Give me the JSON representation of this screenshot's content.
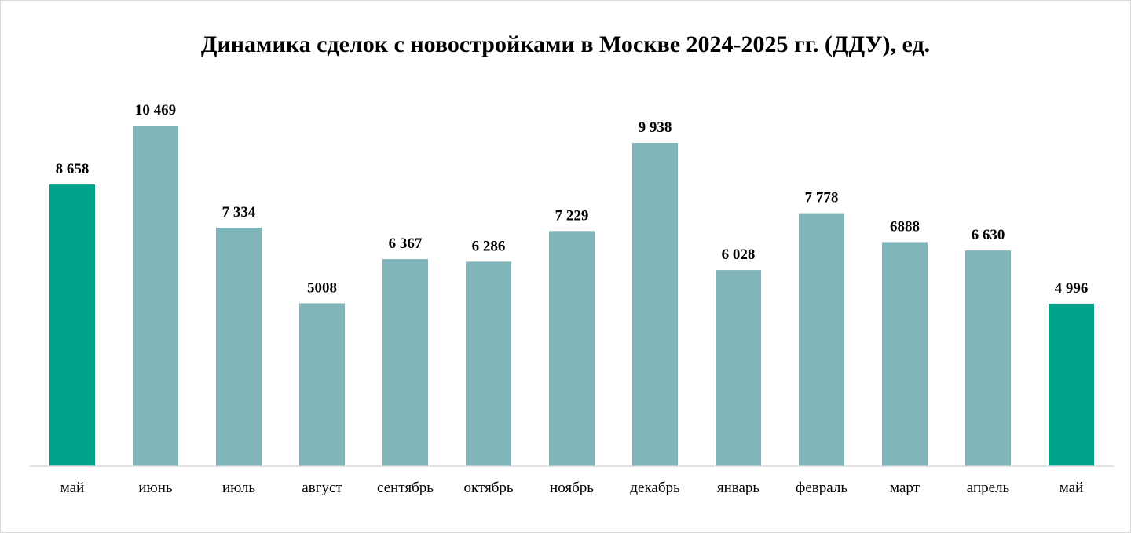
{
  "chart_data": {
    "type": "bar",
    "title": "Динамика сделок с новостройками в Москве 2024-2025 гг. (ДДУ), ед.",
    "xlabel": "",
    "ylabel": "",
    "ylim": [
      0,
      12000
    ],
    "grid": false,
    "legend": "none",
    "categories": [
      "май",
      "июнь",
      "июль",
      "август",
      "сентябрь",
      "октябрь",
      "ноябрь",
      "декабрь",
      "январь",
      "февраль",
      "март",
      "апрель",
      "май"
    ],
    "values": [
      8658,
      10469,
      7334,
      5008,
      6367,
      6286,
      7229,
      9938,
      6028,
      7778,
      6888,
      6630,
      4996
    ],
    "value_labels": [
      "8 658",
      "10 469",
      "7 334",
      "5008",
      "6 367",
      "6 286",
      "7 229",
      "9 938",
      "6 028",
      "7 778",
      "6888",
      "6 630",
      "4 996"
    ],
    "bar_colors": [
      "#00a389",
      "#82b5ba",
      "#82b5ba",
      "#82b5ba",
      "#82b5ba",
      "#82b5ba",
      "#82b5ba",
      "#82b5ba",
      "#82b5ba",
      "#82b5ba",
      "#82b5ba",
      "#82b5ba",
      "#00a389"
    ]
  },
  "colors": {
    "highlight": "#00a389",
    "regular": "#82b5ba",
    "axis": "#d9d9d9"
  }
}
